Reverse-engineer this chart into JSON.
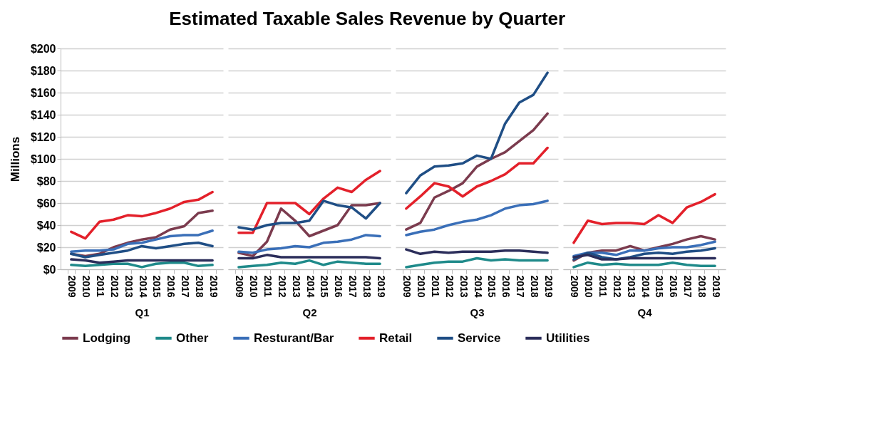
{
  "chart_data": [
    {
      "type": "line",
      "title": "Estimated Taxable Sales Revenue by Quarter",
      "ylabel": "Millions",
      "xlabel": "Q1",
      "categories": [
        "2009",
        "2010",
        "2011",
        "2012",
        "2013",
        "2014",
        "2015",
        "2016",
        "2017",
        "2018",
        "2019"
      ],
      "ylim": [
        0,
        200
      ],
      "yticks": [
        {
          "value": 0,
          "label": "$0"
        },
        {
          "value": 20,
          "label": "$20"
        },
        {
          "value": 40,
          "label": "$40"
        },
        {
          "value": 60,
          "label": "$60"
        },
        {
          "value": 80,
          "label": "$80"
        },
        {
          "value": 100,
          "label": "$100"
        },
        {
          "value": 120,
          "label": "$120"
        },
        {
          "value": 140,
          "label": "$140"
        },
        {
          "value": 160,
          "label": "$160"
        },
        {
          "value": 180,
          "label": "$180"
        },
        {
          "value": 200,
          "label": "$200"
        }
      ],
      "grid": "y",
      "legend": "bottom",
      "series": [
        {
          "name": "Lodging",
          "color": "#7b3b4e",
          "values": [
            14,
            12,
            14,
            20,
            24,
            27,
            29,
            36,
            39,
            51,
            53
          ]
        },
        {
          "name": "Other",
          "color": "#1f8a8a",
          "values": [
            4,
            3,
            4,
            5,
            5,
            2,
            5,
            6,
            6,
            3,
            4
          ]
        },
        {
          "name": "Resturant/Bar",
          "color": "#3a6fb8",
          "values": [
            16,
            17,
            17,
            18,
            23,
            24,
            27,
            30,
            31,
            31,
            35
          ]
        },
        {
          "name": "Retail",
          "color": "#e3202a",
          "values": [
            34,
            28,
            43,
            45,
            49,
            48,
            51,
            55,
            61,
            63,
            70
          ]
        },
        {
          "name": "Service",
          "color": "#1f4e85",
          "values": [
            14,
            11,
            13,
            15,
            17,
            21,
            19,
            21,
            23,
            24,
            21
          ]
        },
        {
          "name": "Utilities",
          "color": "#2b2d5a",
          "values": [
            9,
            8,
            6,
            7,
            8,
            8,
            8,
            8,
            8,
            8,
            8
          ]
        }
      ]
    },
    {
      "type": "line",
      "xlabel": "Q2",
      "categories": [
        "2009",
        "2010",
        "2011",
        "2012",
        "2013",
        "2014",
        "2015",
        "2016",
        "2017",
        "2018",
        "2019"
      ],
      "ylim": [
        0,
        200
      ],
      "yticks": [
        0,
        20,
        40,
        60,
        80,
        100,
        120,
        140,
        160,
        180,
        200
      ],
      "grid": "y",
      "tick_labels": "x",
      "series": [
        {
          "name": "Lodging",
          "color": "#7b3b4e",
          "values": [
            15,
            12,
            25,
            55,
            44,
            30,
            35,
            40,
            58,
            58,
            60
          ]
        },
        {
          "name": "Other",
          "color": "#1f8a8a",
          "values": [
            2,
            3,
            4,
            6,
            5,
            8,
            4,
            7,
            6,
            5,
            5
          ]
        },
        {
          "name": "Resturant/Bar",
          "color": "#3a6fb8",
          "values": [
            16,
            15,
            18,
            19,
            21,
            20,
            24,
            25,
            27,
            31,
            30
          ]
        },
        {
          "name": "Retail",
          "color": "#e3202a",
          "values": [
            33,
            33,
            60,
            60,
            60,
            50,
            64,
            74,
            70,
            81,
            89
          ]
        },
        {
          "name": "Service",
          "color": "#1f4e85",
          "values": [
            38,
            36,
            40,
            42,
            42,
            44,
            62,
            58,
            56,
            46,
            60
          ]
        },
        {
          "name": "Utilities",
          "color": "#2b2d5a",
          "values": [
            10,
            10,
            13,
            11,
            11,
            11,
            11,
            11,
            11,
            11,
            10
          ]
        }
      ]
    },
    {
      "type": "line",
      "xlabel": "Q3",
      "categories": [
        "2009",
        "2010",
        "2011",
        "2012",
        "2013",
        "2014",
        "2015",
        "2016",
        "2017",
        "2018",
        "2019"
      ],
      "ylim": [
        0,
        200
      ],
      "yticks": [
        0,
        20,
        40,
        60,
        80,
        100,
        120,
        140,
        160,
        180,
        200
      ],
      "grid": "y",
      "tick_labels": "x",
      "series": [
        {
          "name": "Lodging",
          "color": "#7b3b4e",
          "values": [
            36,
            42,
            65,
            71,
            78,
            93,
            100,
            106,
            116,
            126,
            141
          ]
        },
        {
          "name": "Other",
          "color": "#1f8a8a",
          "values": [
            2,
            4,
            6,
            7,
            7,
            10,
            8,
            9,
            8,
            8,
            8
          ]
        },
        {
          "name": "Resturant/Bar",
          "color": "#3a6fb8",
          "values": [
            31,
            34,
            36,
            40,
            43,
            45,
            49,
            55,
            58,
            59,
            62
          ]
        },
        {
          "name": "Retail",
          "color": "#e3202a",
          "values": [
            55,
            66,
            78,
            75,
            66,
            75,
            80,
            86,
            96,
            96,
            110
          ]
        },
        {
          "name": "Service",
          "color": "#1f4e85",
          "values": [
            69,
            85,
            93,
            94,
            96,
            103,
            100,
            132,
            151,
            158,
            178
          ]
        },
        {
          "name": "Utilities",
          "color": "#2b2d5a",
          "values": [
            18,
            14,
            16,
            15,
            16,
            16,
            16,
            17,
            17,
            16,
            15
          ]
        }
      ]
    },
    {
      "type": "line",
      "xlabel": "Q4",
      "categories": [
        "2009",
        "2010",
        "2011",
        "2012",
        "2013",
        "2014",
        "2015",
        "2016",
        "2017",
        "2018",
        "2019"
      ],
      "ylim": [
        0,
        200
      ],
      "yticks": [
        0,
        20,
        40,
        60,
        80,
        100,
        120,
        140,
        160,
        180,
        200
      ],
      "grid": "y",
      "tick_labels": "x",
      "series": [
        {
          "name": "Lodging",
          "color": "#7b3b4e",
          "values": [
            8,
            15,
            17,
            17,
            21,
            17,
            20,
            23,
            27,
            30,
            27
          ]
        },
        {
          "name": "Other",
          "color": "#1f8a8a",
          "values": [
            2,
            6,
            4,
            5,
            4,
            4,
            4,
            6,
            4,
            3,
            3
          ]
        },
        {
          "name": "Resturant/Bar",
          "color": "#3a6fb8",
          "values": [
            12,
            15,
            15,
            13,
            17,
            17,
            19,
            20,
            20,
            22,
            25
          ]
        },
        {
          "name": "Retail",
          "color": "#e3202a",
          "values": [
            24,
            44,
            41,
            42,
            42,
            41,
            49,
            42,
            56,
            61,
            68
          ]
        },
        {
          "name": "Service",
          "color": "#1f4e85",
          "values": [
            9,
            15,
            11,
            9,
            11,
            14,
            15,
            14,
            16,
            17,
            19
          ]
        },
        {
          "name": "Utilities",
          "color": "#2b2d5a",
          "values": [
            11,
            13,
            9,
            9,
            10,
            10,
            10,
            10,
            10,
            10,
            10
          ]
        }
      ]
    }
  ]
}
